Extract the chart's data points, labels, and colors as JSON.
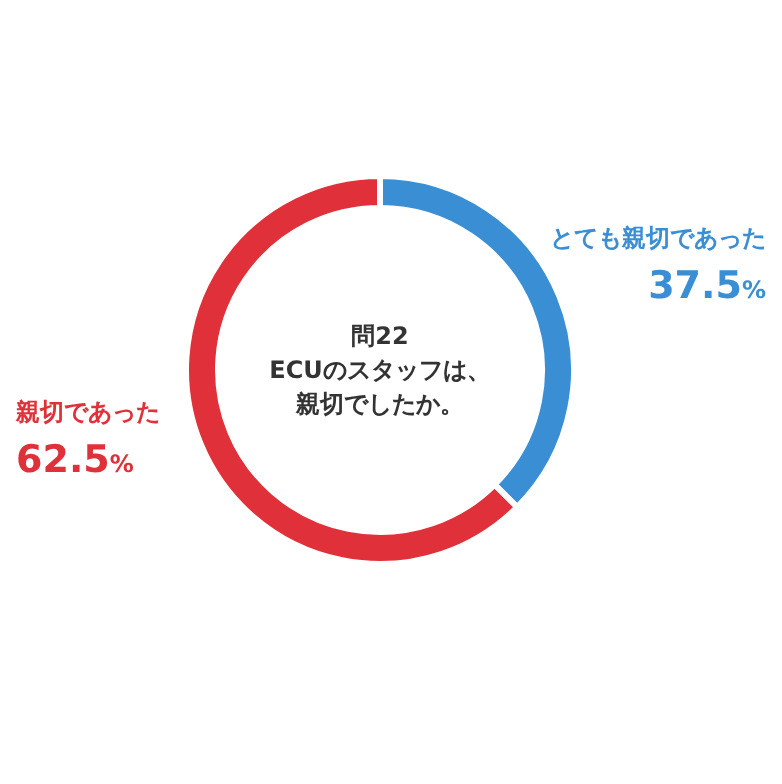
{
  "chart_data": {
    "type": "donut",
    "title": "問22",
    "subtitle": "ECUのスタッフは、親切でしたか。",
    "categories": [
      "とても親切であった",
      "親切であった"
    ],
    "values": [
      37.5,
      62.5
    ],
    "colors": [
      "#3a8fd4",
      "#e0303a"
    ],
    "value_labels": [
      "37.5%",
      "62.5%"
    ]
  }
}
